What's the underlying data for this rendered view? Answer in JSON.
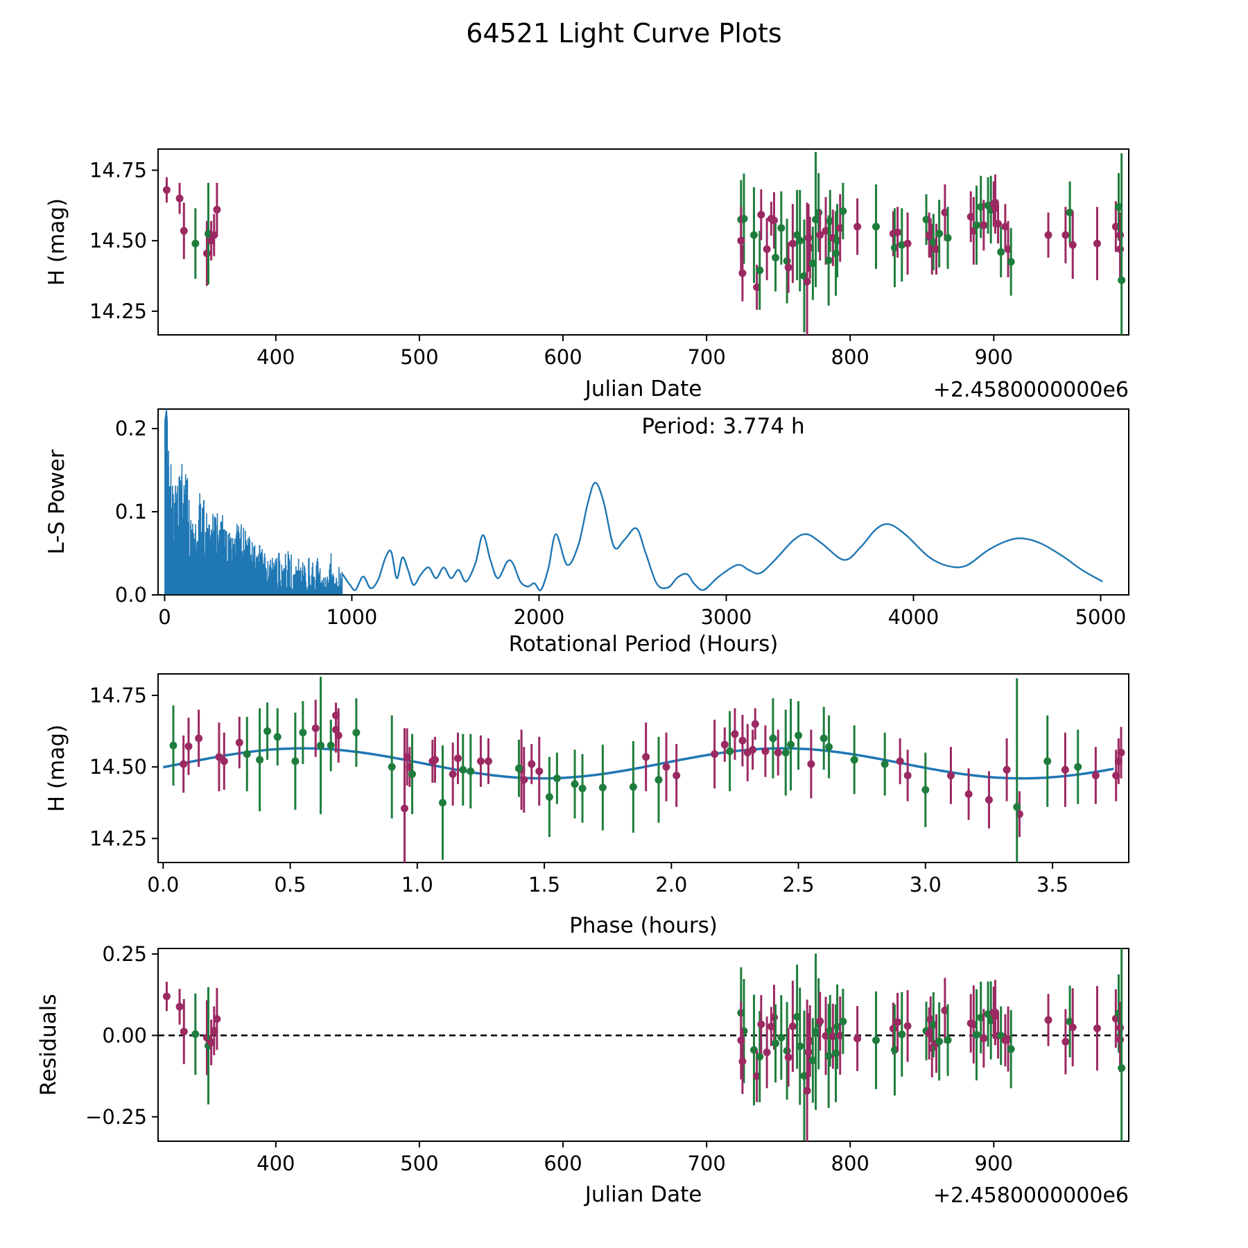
{
  "title": "64521 Light Curve Plots",
  "colors": {
    "band_g": "#1e7d3c",
    "band_r": "#9b2962",
    "fit_line": "#1f77b4",
    "zero_line": "#000000",
    "spine": "#000000"
  },
  "chart_data": {
    "type": "multi-panel light curve figure",
    "title": "64521 Light Curve Plots",
    "plots": [
      {
        "name": "light-curve",
        "type": "errorbar-jd",
        "xlabel": "Julian Date",
        "ylabel": "H (mag)",
        "offset_text": "+2.4580000000e6",
        "xlim": [
          318,
          994
        ],
        "ylim": [
          14.166,
          14.825
        ],
        "xticks": [
          400,
          500,
          600,
          700,
          800,
          900
        ],
        "xtick_labels": [
          "400",
          "500",
          "600",
          "700",
          "800",
          "900"
        ],
        "yticks": [
          14.25,
          14.5,
          14.75
        ],
        "ytick_labels": [
          "14.25",
          "14.50",
          "14.75"
        ]
      },
      {
        "name": "periodogram",
        "type": "periodogram",
        "xlabel": "Rotational Period (Hours)",
        "ylabel": "L-S Power",
        "annotation": "Period: 3.774 h",
        "xlim": [
          -35,
          5150
        ],
        "ylim": [
          0,
          0.2235
        ],
        "xticks": [
          0,
          1000,
          2000,
          3000,
          4000,
          5000
        ],
        "xtick_labels": [
          "0",
          "1000",
          "2000",
          "3000",
          "4000",
          "5000"
        ],
        "yticks": [
          0,
          0.1,
          0.2
        ],
        "ytick_labels": [
          "0.0",
          "0.1",
          "0.2"
        ]
      },
      {
        "name": "phased-light-curve",
        "type": "errorbar-phase",
        "xlabel": "Phase (hours)",
        "ylabel": "H (mag)",
        "xlim": [
          -0.02,
          3.8
        ],
        "ylim": [
          14.166,
          14.825
        ],
        "xticks": [
          0,
          0.5,
          1.0,
          1.5,
          2.0,
          2.5,
          3.0,
          3.5
        ],
        "xtick_labels": [
          "0.0",
          "0.5",
          "1.0",
          "1.5",
          "2.0",
          "2.5",
          "3.0",
          "3.5"
        ],
        "yticks": [
          14.25,
          14.5,
          14.75
        ],
        "ytick_labels": [
          "14.25",
          "14.50",
          "14.75"
        ]
      },
      {
        "name": "residuals",
        "type": "residuals",
        "xlabel": "Julian Date",
        "ylabel": "Residuals",
        "offset_text": "+2.4580000000e6",
        "xlim": [
          318,
          994
        ],
        "ylim": [
          -0.325,
          0.267
        ],
        "xticks": [
          400,
          500,
          600,
          700,
          800,
          900
        ],
        "xtick_labels": [
          "400",
          "500",
          "600",
          "700",
          "800",
          "900"
        ],
        "yticks": [
          -0.25,
          0,
          0.25
        ],
        "ytick_labels": [
          "−0.25",
          "0.00",
          "0.25"
        ]
      }
    ],
    "model_fit": {
      "description": "double-peaked sinusoid fit, mag(p) = mean + amplitude*cos(2*pi*(p - peak_phase)/harmonic_period)",
      "mean": 14.5125,
      "amplitude": 0.0525,
      "period_hours": 3.774,
      "harmonic_period": 1.887,
      "peak_phase": 0.55
    },
    "observations_format": [
      "jd_minus_2458000",
      "phase_hours",
      "H_mag",
      "err_mag",
      "band(g=green,r=purple)"
    ],
    "observations": [
      [
        324,
        0.68,
        14.68,
        0.045,
        "r"
      ],
      [
        333,
        2.33,
        14.65,
        0.055,
        "r"
      ],
      [
        336,
        0.96,
        14.535,
        0.1,
        "r"
      ],
      [
        344,
        1.18,
        14.49,
        0.125,
        "g"
      ],
      [
        352,
        1.42,
        14.455,
        0.115,
        "r"
      ],
      [
        353,
        0.38,
        14.525,
        0.18,
        "g"
      ],
      [
        355,
        0.97,
        14.5,
        0.07,
        "r"
      ],
      [
        357,
        1.06,
        14.52,
        0.075,
        "r"
      ],
      [
        359,
        0.69,
        14.61,
        0.095,
        "r"
      ],
      [
        724,
        0.04,
        14.575,
        0.14,
        "g"
      ],
      [
        726,
        2.47,
        14.578,
        0.16,
        "g"
      ],
      [
        724,
        1.98,
        14.5,
        0.12,
        "r"
      ],
      [
        725,
        3.25,
        14.385,
        0.1,
        "r"
      ],
      [
        733,
        0.52,
        14.52,
        0.17,
        "g"
      ],
      [
        735,
        3.37,
        14.335,
        0.08,
        "r"
      ],
      [
        737,
        1.52,
        14.395,
        0.14,
        "g"
      ],
      [
        738,
        2.28,
        14.592,
        0.09,
        "r"
      ],
      [
        742,
        2.02,
        14.47,
        0.11,
        "r"
      ],
      [
        745,
        2.21,
        14.578,
        0.06,
        "r"
      ],
      [
        747,
        0.1,
        14.572,
        0.1,
        "r"
      ],
      [
        748,
        1.62,
        14.44,
        0.12,
        "g"
      ],
      [
        752,
        0.33,
        14.545,
        0.13,
        "g"
      ],
      [
        756,
        1.73,
        14.428,
        0.15,
        "g"
      ],
      [
        757,
        3.17,
        14.405,
        0.09,
        "r"
      ],
      [
        760,
        1.41,
        14.49,
        0.14,
        "r"
      ],
      [
        763,
        3.48,
        14.52,
        0.16,
        "g"
      ],
      [
        765,
        0.9,
        14.5,
        0.18,
        "g"
      ],
      [
        768,
        1.1,
        14.375,
        0.2,
        "g"
      ],
      [
        770,
        0.95,
        14.355,
        0.28,
        "r"
      ],
      [
        771,
        2.55,
        14.51,
        0.12,
        "r"
      ],
      [
        772,
        1.14,
        14.475,
        0.11,
        "r"
      ],
      [
        774,
        3.0,
        14.42,
        0.13,
        "g"
      ],
      [
        776,
        0.62,
        14.575,
        0.24,
        "g"
      ],
      [
        778,
        2.4,
        14.6,
        0.14,
        "g"
      ],
      [
        779,
        1.25,
        14.52,
        0.09,
        "r"
      ],
      [
        783,
        0.22,
        14.535,
        0.12,
        "r"
      ],
      [
        785,
        1.85,
        14.43,
        0.16,
        "g"
      ],
      [
        786,
        2.62,
        14.57,
        0.11,
        "g"
      ],
      [
        788,
        0.08,
        14.51,
        0.1,
        "r"
      ],
      [
        790,
        1.95,
        14.455,
        0.15,
        "g"
      ],
      [
        791,
        3.6,
        14.5,
        0.13,
        "g"
      ],
      [
        793,
        2.17,
        14.545,
        0.12,
        "r"
      ],
      [
        795,
        0.45,
        14.605,
        0.1,
        "g"
      ],
      [
        805,
        2.3,
        14.55,
        0.1,
        "r"
      ],
      [
        818,
        2.45,
        14.55,
        0.15,
        "g"
      ],
      [
        830,
        1.07,
        14.525,
        0.08,
        "r"
      ],
      [
        831,
        0.98,
        14.475,
        0.14,
        "g"
      ],
      [
        833,
        1.16,
        14.53,
        0.09,
        "r"
      ],
      [
        836,
        1.21,
        14.485,
        0.13,
        "g"
      ],
      [
        840,
        3.32,
        14.49,
        0.11,
        "r"
      ],
      [
        853,
        0.66,
        14.575,
        0.09,
        "g"
      ],
      [
        855,
        2.9,
        14.52,
        0.08,
        "r"
      ],
      [
        856,
        1.45,
        14.51,
        0.07,
        "r"
      ],
      [
        857,
        2.93,
        14.47,
        0.09,
        "r"
      ],
      [
        858,
        1.4,
        14.495,
        0.1,
        "g"
      ],
      [
        860,
        3.75,
        14.47,
        0.09,
        "r"
      ],
      [
        862,
        2.72,
        14.525,
        0.12,
        "g"
      ],
      [
        866,
        0.14,
        14.6,
        0.1,
        "r"
      ],
      [
        868,
        2.84,
        14.51,
        0.11,
        "g"
      ],
      [
        884,
        0.3,
        14.585,
        0.09,
        "r"
      ],
      [
        886,
        1.9,
        14.535,
        0.12,
        "r"
      ],
      [
        888,
        2.23,
        14.555,
        0.14,
        "g"
      ],
      [
        891,
        0.55,
        14.62,
        0.11,
        "g"
      ],
      [
        893,
        2.37,
        14.555,
        0.09,
        "r"
      ],
      [
        896,
        0.41,
        14.625,
        0.1,
        "g"
      ],
      [
        898,
        2.5,
        14.61,
        0.12,
        "g"
      ],
      [
        900,
        0.68,
        14.63,
        0.08,
        "r"
      ],
      [
        901,
        2.25,
        14.615,
        0.09,
        "r"
      ],
      [
        901,
        0.6,
        14.635,
        0.1,
        "r"
      ],
      [
        903,
        2.32,
        14.56,
        0.07,
        "r"
      ],
      [
        905,
        1.55,
        14.46,
        0.09,
        "g"
      ],
      [
        908,
        2.42,
        14.55,
        0.08,
        "r"
      ],
      [
        910,
        3.1,
        14.47,
        0.1,
        "r"
      ],
      [
        912,
        1.65,
        14.425,
        0.12,
        "g"
      ],
      [
        938,
        1.28,
        14.52,
        0.08,
        "r"
      ],
      [
        950,
        0.24,
        14.52,
        0.1,
        "r"
      ],
      [
        953,
        2.6,
        14.6,
        0.11,
        "g"
      ],
      [
        955,
        1.48,
        14.485,
        0.12,
        "r"
      ],
      [
        972,
        3.55,
        14.49,
        0.13,
        "r"
      ],
      [
        985,
        3.77,
        14.55,
        0.09,
        "r"
      ],
      [
        987,
        0.76,
        14.62,
        0.12,
        "g"
      ],
      [
        988,
        3.67,
        14.47,
        0.1,
        "r"
      ],
      [
        988,
        3.76,
        14.52,
        0.08,
        "r"
      ],
      [
        989,
        3.36,
        14.36,
        0.45,
        "g"
      ]
    ],
    "periodogram_data": {
      "annotation": "Period: 3.774 h",
      "best_period_hours": 3.774,
      "noise_region_x_max": 950,
      "noise_envelope_anchors": [
        [
          1,
          0.21
        ],
        [
          10,
          0.225
        ],
        [
          25,
          0.17
        ],
        [
          60,
          0.155
        ],
        [
          90,
          0.16
        ],
        [
          120,
          0.145
        ],
        [
          150,
          0.1
        ],
        [
          190,
          0.135
        ],
        [
          230,
          0.095
        ],
        [
          270,
          0.1
        ],
        [
          310,
          0.105
        ],
        [
          350,
          0.075
        ],
        [
          390,
          0.095
        ],
        [
          430,
          0.08
        ],
        [
          470,
          0.065
        ],
        [
          510,
          0.062
        ],
        [
          550,
          0.042
        ],
        [
          600,
          0.048
        ],
        [
          640,
          0.062
        ],
        [
          680,
          0.052
        ],
        [
          720,
          0.058
        ],
        [
          760,
          0.052
        ],
        [
          800,
          0.058
        ],
        [
          840,
          0.048
        ],
        [
          880,
          0.062
        ],
        [
          920,
          0.042
        ],
        [
          950,
          0.03
        ]
      ],
      "smooth_anchors": [
        [
          950,
          0.025
        ],
        [
          990,
          0.012
        ],
        [
          1020,
          0.006
        ],
        [
          1060,
          0.022
        ],
        [
          1100,
          0.008
        ],
        [
          1140,
          0.018
        ],
        [
          1180,
          0.045
        ],
        [
          1210,
          0.052
        ],
        [
          1240,
          0.02
        ],
        [
          1270,
          0.045
        ],
        [
          1300,
          0.03
        ],
        [
          1330,
          0.012
        ],
        [
          1370,
          0.025
        ],
        [
          1410,
          0.033
        ],
        [
          1450,
          0.02
        ],
        [
          1490,
          0.033
        ],
        [
          1530,
          0.02
        ],
        [
          1570,
          0.03
        ],
        [
          1610,
          0.016
        ],
        [
          1660,
          0.038
        ],
        [
          1700,
          0.072
        ],
        [
          1740,
          0.042
        ],
        [
          1780,
          0.02
        ],
        [
          1830,
          0.04
        ],
        [
          1860,
          0.038
        ],
        [
          1900,
          0.016
        ],
        [
          1940,
          0.01
        ],
        [
          1975,
          0.014
        ],
        [
          2010,
          0.006
        ],
        [
          2050,
          0.032
        ],
        [
          2090,
          0.073
        ],
        [
          2150,
          0.036
        ],
        [
          2210,
          0.06
        ],
        [
          2260,
          0.11
        ],
        [
          2300,
          0.135
        ],
        [
          2345,
          0.112
        ],
        [
          2400,
          0.058
        ],
        [
          2455,
          0.066
        ],
        [
          2520,
          0.08
        ],
        [
          2570,
          0.05
        ],
        [
          2630,
          0.013
        ],
        [
          2690,
          0.009
        ],
        [
          2740,
          0.021
        ],
        [
          2790,
          0.025
        ],
        [
          2830,
          0.013
        ],
        [
          2880,
          0.006
        ],
        [
          2960,
          0.022
        ],
        [
          3060,
          0.036
        ],
        [
          3120,
          0.03
        ],
        [
          3180,
          0.026
        ],
        [
          3260,
          0.042
        ],
        [
          3360,
          0.066
        ],
        [
          3430,
          0.073
        ],
        [
          3510,
          0.062
        ],
        [
          3630,
          0.042
        ],
        [
          3720,
          0.058
        ],
        [
          3800,
          0.079
        ],
        [
          3870,
          0.085
        ],
        [
          3960,
          0.072
        ],
        [
          4080,
          0.046
        ],
        [
          4180,
          0.035
        ],
        [
          4280,
          0.035
        ],
        [
          4400,
          0.054
        ],
        [
          4500,
          0.065
        ],
        [
          4580,
          0.068
        ],
        [
          4680,
          0.062
        ],
        [
          4800,
          0.046
        ],
        [
          4900,
          0.03
        ],
        [
          5010,
          0.016
        ]
      ]
    }
  }
}
